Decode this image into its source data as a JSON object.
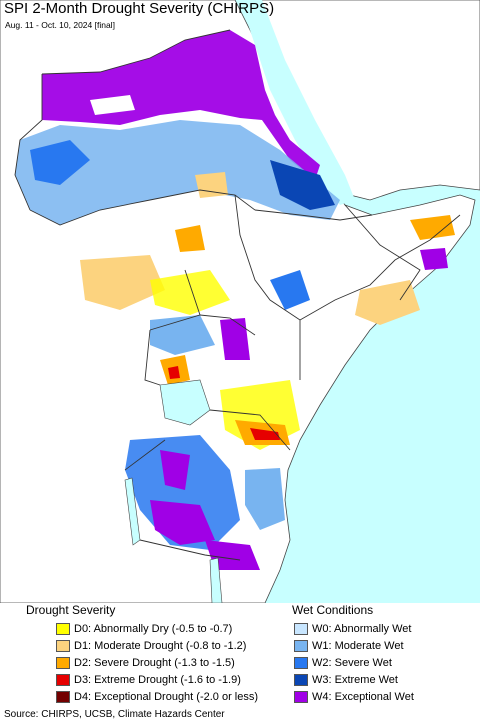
{
  "title": "SPI 2-Month Drought Severity (CHIRPS)",
  "subtitle": "Aug. 11 - Oct. 10, 2024 [final]",
  "colors": {
    "sea": "#c8ffff",
    "land": "#ffffff",
    "border": "#333333"
  },
  "legend": {
    "drought_heading": "Drought Severity",
    "wet_heading": "Wet Conditions",
    "drought_items": [
      {
        "label": "D0: Abnormally Dry (-0.5 to -0.7)",
        "color": "#ffff00"
      },
      {
        "label": "D1: Moderate Drought (-0.8 to -1.2)",
        "color": "#fcd37f"
      },
      {
        "label": "D2: Severe Drought (-1.3 to -1.5)",
        "color": "#ffaa00"
      },
      {
        "label": "D3: Extreme Drought (-1.6 to -1.9)",
        "color": "#e60000"
      },
      {
        "label": "D4: Exceptional Drought (-2.0 or less)",
        "color": "#730000"
      }
    ],
    "wet_items": [
      {
        "label": "W0: Abnormally Wet",
        "color": "#c8e6ff"
      },
      {
        "label": "W1: Moderate Wet",
        "color": "#78b4f0"
      },
      {
        "label": "W2: Severe Wet",
        "color": "#2878f0"
      },
      {
        "label": "W3: Extreme Wet",
        "color": "#0a46b4"
      },
      {
        "label": "W4: Exceptional Wet",
        "color": "#a000e6"
      }
    ]
  },
  "source": "Source: CHIRPS, UCSB, Climate Hazards Center"
}
